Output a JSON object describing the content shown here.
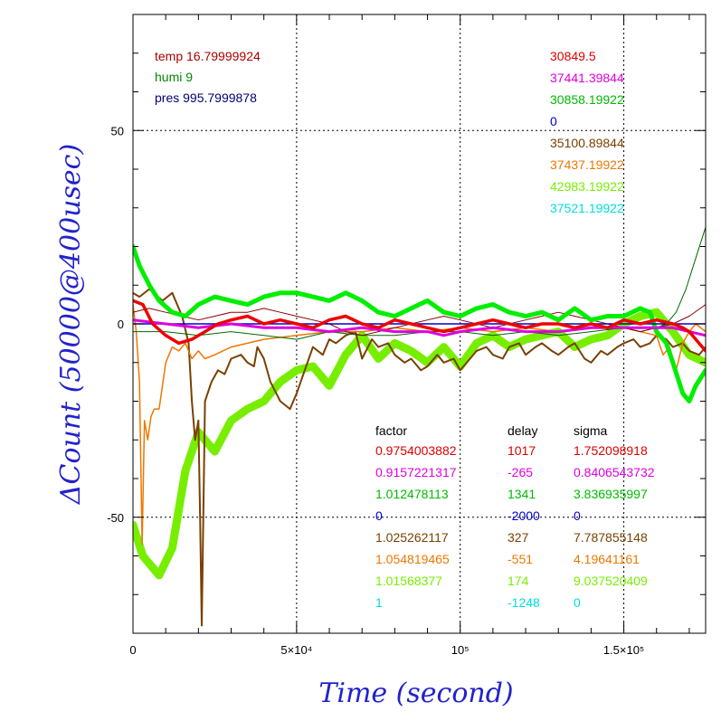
{
  "chart_data": {
    "type": "line",
    "xlabel": "Time (second)",
    "ylabel": "ΔCount (50000@400usec)",
    "xlim": [
      0,
      175000
    ],
    "ylim": [
      -80,
      80
    ],
    "x_ticks": [
      {
        "value": 0,
        "label": "0"
      },
      {
        "value": 50000,
        "label": "5×10⁴"
      },
      {
        "value": 100000,
        "label": "10⁵"
      },
      {
        "value": 150000,
        "label": "1.5×10⁵"
      }
    ],
    "y_ticks": [
      {
        "value": 50,
        "label": "50"
      },
      {
        "value": 0,
        "label": "0"
      },
      {
        "value": -50,
        "label": "-50"
      }
    ],
    "grid": "dotted",
    "env": [
      {
        "text": "temp 16.79999924",
        "color": "#aa0000"
      },
      {
        "text": "humi 9",
        "color": "#008800"
      },
      {
        "text": "pres 995.7999878",
        "color": "#000077"
      }
    ],
    "means": [
      {
        "text": "30849.5",
        "color": "#dd0000"
      },
      {
        "text": "37441.39844",
        "color": "#dd00dd"
      },
      {
        "text": "30858.19922",
        "color": "#00bb00"
      },
      {
        "text": "0",
        "color": "#0000cc"
      },
      {
        "text": "35100.89844",
        "color": "#7a4000"
      },
      {
        "text": "37437.19922",
        "color": "#ee7700"
      },
      {
        "text": "42983.19922",
        "color": "#77ee00"
      },
      {
        "text": "37521.19922",
        "color": "#00dddd"
      }
    ],
    "table": {
      "headers": [
        "factor",
        "delay",
        "sigma"
      ],
      "rows": [
        {
          "color": "#dd0000",
          "cells": [
            "0.9754003882",
            "1017",
            "1.752098918"
          ]
        },
        {
          "color": "#dd00dd",
          "cells": [
            "0.9157221317",
            "-265",
            "0.8406543732"
          ]
        },
        {
          "color": "#00bb00",
          "cells": [
            "1.012478113",
            "1341",
            "3.836935997"
          ]
        },
        {
          "color": "#0000cc",
          "cells": [
            "0",
            "-2000",
            "0"
          ]
        },
        {
          "color": "#7a4000",
          "cells": [
            "1.025262117",
            "327",
            "7.787855148"
          ]
        },
        {
          "color": "#ee7700",
          "cells": [
            "1.054819465",
            "-551",
            "4.19641161"
          ]
        },
        {
          "color": "#77ee00",
          "cells": [
            "1.01568377",
            "174",
            "9.037520409"
          ]
        },
        {
          "color": "#00dddd",
          "cells": [
            "1",
            "-1248",
            "0"
          ]
        }
      ]
    },
    "series": [
      {
        "color": "#77ee00",
        "width": 9,
        "x": [
          0,
          3000,
          8000,
          12000,
          16000,
          20000,
          25000,
          30000,
          35000,
          40000,
          45000,
          50000,
          55000,
          60000,
          65000,
          70000,
          75000,
          80000,
          85000,
          90000,
          95000,
          100000,
          105000,
          110000,
          115000,
          120000,
          125000,
          130000,
          135000,
          140000,
          145000,
          150000,
          155000,
          160000,
          165000,
          170000,
          175000
        ],
        "y": [
          -52,
          -60,
          -65,
          -58,
          -38,
          -28,
          -33,
          -25,
          -22,
          -20,
          -15,
          -12,
          -11,
          -16,
          -8,
          -3,
          -9,
          -5,
          -7,
          -10,
          -6,
          -11,
          -5,
          -3,
          -6,
          -4,
          -3,
          -2,
          -6,
          -4,
          -3,
          0,
          2,
          3,
          -2,
          -8,
          -10
        ]
      },
      {
        "color": "#7a4000",
        "width": 2,
        "x": [
          0,
          2000,
          5000,
          9000,
          12000,
          15000,
          17000,
          18000,
          19000,
          20000,
          20500,
          21000,
          22000,
          24000,
          26000,
          28000,
          30000,
          33000,
          35000,
          37000,
          38000,
          40000,
          42000,
          45000,
          48000,
          50000,
          55000,
          58000,
          60000,
          62000,
          65000,
          68000,
          70000,
          73000,
          75000,
          78000,
          80000,
          83000,
          85000,
          88000,
          90000,
          93000,
          95000,
          98000,
          100000,
          103000,
          105000,
          108000,
          110000,
          113000,
          115000,
          118000,
          120000,
          123000,
          125000,
          128000,
          130000,
          133000,
          135000,
          138000,
          140000,
          143000,
          145000,
          148000,
          150000,
          153000,
          155000,
          158000,
          160000,
          163000,
          165000,
          168000,
          170000,
          173000,
          175000
        ],
        "y": [
          8,
          7,
          9,
          6,
          8,
          2,
          -5,
          -20,
          -30,
          -25,
          -50,
          -78,
          -20,
          -15,
          -12,
          -13,
          -9,
          -8,
          -10,
          -11,
          -6,
          -9,
          -15,
          -20,
          -22,
          -18,
          -6,
          -8,
          -4,
          -5,
          -3,
          -2,
          -9,
          -4,
          -6,
          -5,
          -8,
          -10,
          -9,
          -12,
          -11,
          -8,
          -10,
          -9,
          -12,
          -9,
          -7,
          -6,
          -8,
          -9,
          -6,
          -5,
          -8,
          -6,
          -5,
          -7,
          -8,
          -6,
          -5,
          -9,
          -10,
          -7,
          -8,
          -6,
          -5,
          -4,
          -6,
          -5,
          -3,
          -4,
          -6,
          -5,
          -7,
          -8,
          -6
        ]
      },
      {
        "color": "#ee7700",
        "width": 1.5,
        "x": [
          0,
          1000,
          2000,
          2800,
          3500,
          4500,
          5500,
          6500,
          8000,
          10000,
          12000,
          14000,
          16000,
          18000,
          20000,
          22000,
          25000,
          30000,
          35000,
          40000,
          50000,
          60000,
          70000,
          80000,
          90000,
          100000,
          110000,
          120000,
          130000,
          140000,
          150000,
          160000,
          162000,
          164000,
          166000,
          168000,
          170000,
          172000,
          175000
        ],
        "y": [
          5,
          -2,
          -15,
          -57,
          -25,
          -30,
          -24,
          -22,
          -22,
          -10,
          -6,
          -7,
          -5,
          -9,
          -7,
          -9,
          -8,
          -6,
          -5,
          -4,
          -3,
          -2,
          -2,
          -1,
          -2,
          -1,
          -2,
          -1,
          -2,
          -1,
          -1,
          -3,
          -8,
          -6,
          -12,
          -5,
          -2,
          0,
          -2
        ]
      },
      {
        "color": "#006600",
        "width": 1,
        "x": [
          0,
          10000,
          20000,
          30000,
          40000,
          50000,
          60000,
          70000,
          80000,
          90000,
          100000,
          110000,
          120000,
          130000,
          140000,
          150000,
          155000,
          160000,
          163000,
          166000,
          169000,
          172000,
          175000
        ],
        "y": [
          -2,
          -2,
          -3,
          -2,
          -3,
          -4,
          -2,
          -3,
          -3,
          -2,
          -2,
          -3,
          -2,
          -3,
          -2,
          -1,
          -2,
          -1,
          0,
          3,
          9,
          17,
          25
        ]
      },
      {
        "color": "#880000",
        "width": 1,
        "x": [
          0,
          5000,
          10000,
          15000,
          20000,
          25000,
          30000,
          35000,
          40000,
          45000,
          50000,
          55000,
          60000,
          65000,
          70000,
          75000,
          80000,
          85000,
          90000,
          95000,
          100000,
          105000,
          110000,
          115000,
          120000,
          125000,
          130000,
          135000,
          140000,
          145000,
          150000,
          155000,
          160000,
          165000,
          170000,
          175000
        ],
        "y": [
          3,
          4,
          3,
          2,
          1,
          2,
          3,
          3,
          4,
          3,
          2,
          1,
          0,
          -2,
          -3,
          -2,
          -1,
          0,
          1,
          2,
          1,
          0,
          -1,
          0,
          1,
          2,
          3,
          2,
          1,
          0,
          -1,
          -2,
          -1,
          0,
          2,
          5
        ]
      },
      {
        "color": "#00ee00",
        "width": 5,
        "x": [
          0,
          2000,
          5000,
          8000,
          12000,
          16000,
          20000,
          25000,
          30000,
          35000,
          40000,
          45000,
          50000,
          55000,
          60000,
          65000,
          70000,
          75000,
          80000,
          85000,
          90000,
          95000,
          100000,
          105000,
          110000,
          115000,
          120000,
          125000,
          130000,
          135000,
          140000,
          145000,
          150000,
          155000,
          158000,
          160000,
          163000,
          165000,
          168000,
          170000,
          172000,
          175000
        ],
        "y": [
          20,
          15,
          10,
          6,
          3,
          2,
          5,
          7,
          6,
          5,
          7,
          8,
          8,
          7,
          6,
          8,
          6,
          3,
          2,
          4,
          6,
          3,
          2,
          4,
          5,
          3,
          2,
          3,
          1,
          4,
          1,
          2,
          2,
          4,
          3,
          -2,
          -5,
          -10,
          -18,
          -20,
          -16,
          -12
        ]
      },
      {
        "color": "#0000cc",
        "width": 1.5,
        "x": [
          0,
          175000
        ],
        "y": [
          0,
          0
        ]
      },
      {
        "color": "#dd00dd",
        "width": 3,
        "x": [
          0,
          10000,
          20000,
          30000,
          40000,
          50000,
          60000,
          70000,
          80000,
          90000,
          95000,
          100000,
          110000,
          120000,
          130000,
          140000,
          150000,
          160000,
          165000,
          170000,
          175000
        ],
        "y": [
          1,
          0,
          -1,
          0,
          -1,
          -1,
          -2,
          -1,
          -2,
          -2,
          -3,
          -2,
          -1,
          -2,
          -2,
          -1,
          -1,
          -1,
          -1,
          -2,
          -3
        ]
      },
      {
        "color": "#ee0000",
        "width": 3.5,
        "x": [
          0,
          3000,
          6000,
          10000,
          14000,
          18000,
          22000,
          26000,
          30000,
          35000,
          40000,
          45000,
          50000,
          55000,
          60000,
          65000,
          70000,
          75000,
          80000,
          85000,
          90000,
          95000,
          100000,
          105000,
          110000,
          115000,
          120000,
          125000,
          130000,
          135000,
          140000,
          145000,
          150000,
          155000,
          160000,
          165000,
          168000,
          170000,
          172000,
          175000
        ],
        "y": [
          6,
          5,
          0,
          -3,
          -5,
          -4,
          -2,
          0,
          1,
          2,
          0,
          1,
          0,
          -1,
          1,
          2,
          0,
          -1,
          1,
          0,
          -1,
          -2,
          -1,
          0,
          1,
          0,
          -1,
          0,
          0,
          -1,
          0,
          -1,
          1,
          0,
          1,
          0,
          -1,
          -2,
          -4,
          -7
        ]
      }
    ]
  }
}
